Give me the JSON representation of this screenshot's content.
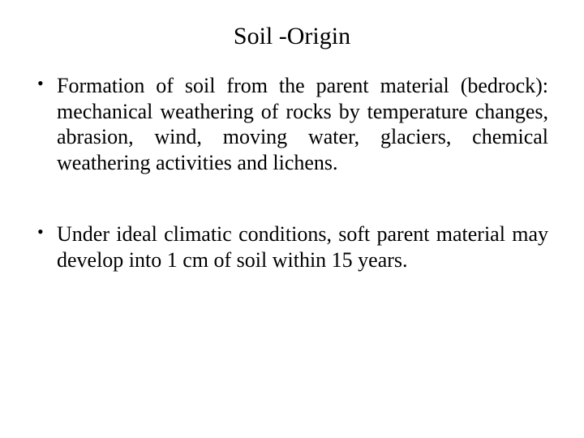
{
  "slide": {
    "title": "Soil -Origin",
    "bullets": [
      {
        "text": "Formation of soil from the parent material (bedrock): mechanical weathering of rocks by temperature changes, abrasion, wind, moving water, glaciers, chemical weathering activities and lichens."
      },
      {
        "text": "Under ideal climatic conditions, soft parent material may develop into 1 cm of soil within 15 years."
      }
    ]
  }
}
